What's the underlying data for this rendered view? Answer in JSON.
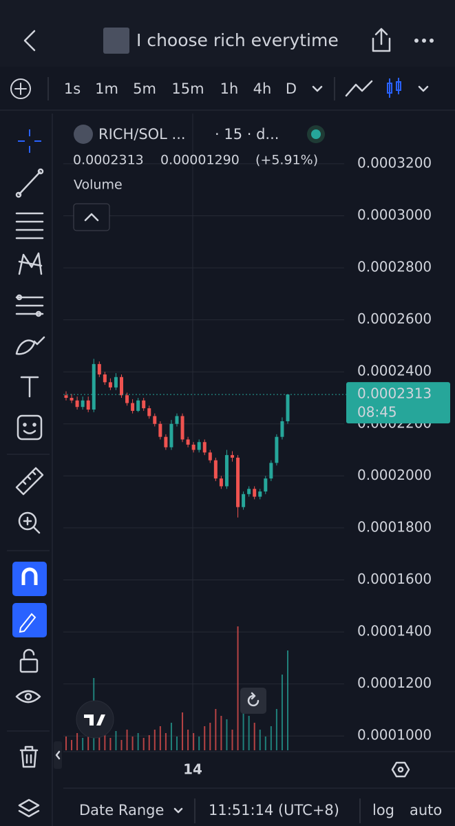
{
  "header": {
    "title": "I choose rich everytime"
  },
  "toolbar": {
    "intervals": [
      "1s",
      "1m",
      "5m",
      "15m",
      "1h",
      "4h",
      "D"
    ]
  },
  "chart_data": {
    "type": "candlestick",
    "symbol": "RICH/SOL ...",
    "interval": "· 15 · d...",
    "legend": {
      "last": "0.0002313",
      "change": "0.00001290",
      "change_pct": "(+5.91%)"
    },
    "indicator": "Volume",
    "x_label": "14",
    "up_color": "#26a69a",
    "down_color": "#ef5350",
    "open": [
      0.000231,
      0.00023,
      0.000229,
      0.0002265,
      0.000229,
      0.0002255,
      0.000243,
      0.000239,
      0.000236,
      0.000234,
      0.000238,
      0.000231,
      0.000228,
      0.000225,
      0.000229,
      0.000226,
      0.000223,
      0.00022,
      0.000215,
      0.000211,
      0.00022,
      0.000223,
      0.000214,
      0.000212,
      0.00021,
      0.000213,
      0.000209,
      0.000206,
      0.000199,
      0.000196,
      0.000208,
      0.000207,
      0.000188,
      0.000193,
      0.000195,
      0.000192,
      0.000194,
      0.000199,
      0.000205,
      0.000215,
      0.000221
    ],
    "high": [
      0.0002325,
      0.0002315,
      0.0002305,
      0.0002305,
      0.0002305,
      0.000245,
      0.000244,
      0.00024,
      0.0002375,
      0.0002395,
      0.000239,
      0.000232,
      0.0002295,
      0.00023,
      0.00023,
      0.000227,
      0.000224,
      0.000221,
      0.000216,
      0.0002215,
      0.000224,
      0.000224,
      0.000215,
      0.000213,
      0.000214,
      0.000214,
      0.00021,
      0.000207,
      0.0002,
      0.00021,
      0.0002095,
      0.000208,
      0.000194,
      0.000196,
      0.000196,
      0.000195,
      0.0002,
      0.000206,
      0.000216,
      0.0002225,
      0.0002313
    ],
    "low": [
      0.000229,
      0.000228,
      0.0002255,
      0.0002255,
      0.0002245,
      0.0002245,
      0.000238,
      0.000235,
      0.000233,
      0.000233,
      0.00023,
      0.000227,
      0.000224,
      0.0002245,
      0.000225,
      0.000222,
      0.000219,
      0.000214,
      0.00021,
      0.00021,
      0.000219,
      0.000213,
      0.000211,
      0.000209,
      0.000209,
      0.000208,
      0.000205,
      0.000198,
      0.000195,
      0.000195,
      0.0002055,
      0.000184,
      0.000187,
      0.000192,
      0.000191,
      0.000191,
      0.000193,
      0.000198,
      0.000204,
      0.000214,
      0.00022
    ],
    "close": [
      0.00023,
      0.000229,
      0.0002265,
      0.000229,
      0.0002255,
      0.000243,
      0.000239,
      0.000236,
      0.000234,
      0.000238,
      0.000231,
      0.000228,
      0.000225,
      0.000229,
      0.000226,
      0.000223,
      0.00022,
      0.000215,
      0.000211,
      0.00022,
      0.000223,
      0.000214,
      0.000212,
      0.00021,
      0.000213,
      0.000209,
      0.000206,
      0.000199,
      0.000196,
      0.000208,
      0.000207,
      0.000188,
      0.000193,
      0.000195,
      0.000192,
      0.000194,
      0.000199,
      0.000205,
      0.000215,
      0.000221,
      0.0002313
    ],
    "volume": [
      20,
      15,
      25,
      18,
      30,
      105,
      40,
      22,
      18,
      28,
      15,
      30,
      20,
      25,
      18,
      22,
      30,
      35,
      25,
      40,
      20,
      55,
      30,
      25,
      20,
      35,
      40,
      60,
      50,
      45,
      30,
      180,
      90,
      50,
      40,
      30,
      20,
      35,
      60,
      110,
      145
    ],
    "last_price": 0.0002313,
    "countdown": "08:45",
    "ylim": [
      9.45e-05,
      0.0003393
    ],
    "yticks": [
      {
        "value": 0.00032,
        "label": "0.0003200"
      },
      {
        "value": 0.0003,
        "label": "0.0003000"
      },
      {
        "value": 0.00028,
        "label": "0.0002800"
      },
      {
        "value": 0.00026,
        "label": "0.0002600"
      },
      {
        "value": 0.00024,
        "label": "0.0002400"
      },
      {
        "value": 0.00022,
        "label": "0.0002200"
      },
      {
        "value": 0.0002,
        "label": "0.0002000"
      },
      {
        "value": 0.00018,
        "label": "0.0001800"
      },
      {
        "value": 0.00016,
        "label": "0.0001600"
      },
      {
        "value": 0.00014,
        "label": "0.0001400"
      },
      {
        "value": 0.00012,
        "label": "0.0001200"
      },
      {
        "value": 0.0001,
        "label": "0.0001000"
      }
    ],
    "grid": true
  },
  "footer": {
    "date_range": "Date Range",
    "time": "11:51:14 (UTC+8)",
    "log": "log",
    "auto": "auto"
  }
}
